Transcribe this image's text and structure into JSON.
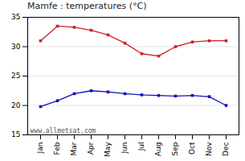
{
  "chart_data": {
    "type": "line",
    "title": "Mamfe : temperatures (°C)",
    "categories": [
      "Jan",
      "Feb",
      "Mar",
      "Apr",
      "May",
      "Jun",
      "Jul",
      "Aug",
      "Sep",
      "Oct",
      "Nov",
      "Dec"
    ],
    "series": [
      {
        "color": "#cc2222",
        "marker": "square",
        "values": [
          31.0,
          33.5,
          33.3,
          32.8,
          32.0,
          30.6,
          28.8,
          28.4,
          30.0,
          30.8,
          31.0,
          31.0
        ]
      },
      {
        "color": "#1111bb",
        "marker": "square",
        "values": [
          19.8,
          20.8,
          22.0,
          22.5,
          22.3,
          22.0,
          21.8,
          21.7,
          21.6,
          21.7,
          21.5,
          20.0
        ]
      }
    ],
    "ylim": [
      15,
      35
    ],
    "yticks": [
      15,
      20,
      25,
      30,
      35
    ],
    "grid": true,
    "annotations": [
      "www.allmetsat.com"
    ]
  }
}
